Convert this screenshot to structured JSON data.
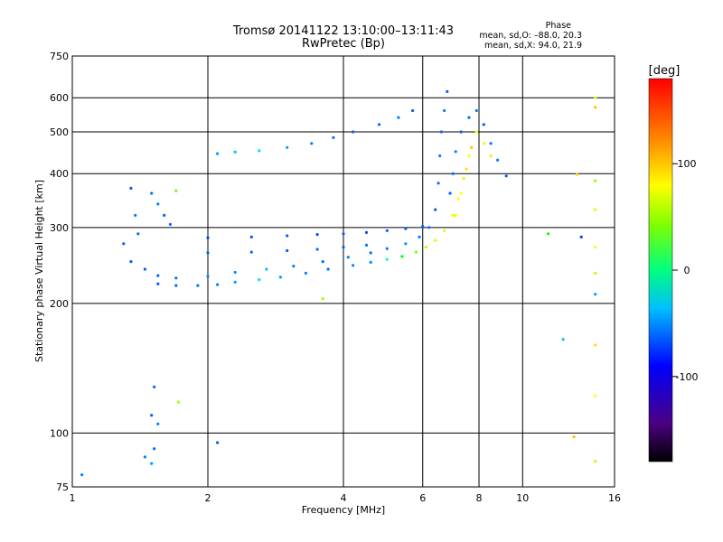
{
  "title": "Tromsø 20141122 13:10:00–13:11:43",
  "subtitle": "RwPretec (Bp)",
  "phase_info": {
    "heading": "Phase",
    "line1": "mean, sd,O: –88.0, 20.3",
    "line2": "mean, sd,X:  94.0, 21.9"
  },
  "chart_data": {
    "type": "scatter",
    "xlabel": "Frequency [MHz]",
    "ylabel": "Stationary phase Virtual Height [km]",
    "xscale": "log",
    "yscale": "log",
    "xlim": [
      1,
      16
    ],
    "ylim": [
      75,
      750
    ],
    "xticks": [
      1,
      2,
      4,
      6,
      8,
      10,
      16
    ],
    "yticks": [
      75,
      100,
      200,
      300,
      400,
      500,
      600,
      750
    ],
    "grid": true,
    "colorbar": {
      "label": "[deg]",
      "range": [
        -180,
        180
      ],
      "ticks": [
        100,
        0,
        -100
      ],
      "colormap": "rainbow"
    },
    "series": [
      {
        "points": [
          [
            1.55,
            222,
            -110
          ],
          [
            1.7,
            220,
            -108
          ],
          [
            1.9,
            220,
            -105
          ],
          [
            2.1,
            221,
            -100
          ],
          [
            2.3,
            224,
            -90
          ],
          [
            2.6,
            227,
            -70
          ],
          [
            2.9,
            230,
            -90
          ],
          [
            3.3,
            235,
            -100
          ],
          [
            3.7,
            240,
            -105
          ],
          [
            4.2,
            245,
            -100
          ],
          [
            4.6,
            249,
            -95
          ],
          [
            5.0,
            253,
            -40
          ],
          [
            5.4,
            257,
            20
          ],
          [
            5.8,
            263,
            60
          ],
          [
            6.1,
            270,
            80
          ],
          [
            6.4,
            280,
            85
          ],
          [
            6.7,
            295,
            90
          ],
          [
            7.0,
            320,
            95
          ],
          [
            7.2,
            350,
            100
          ],
          [
            7.4,
            390,
            105
          ],
          [
            7.6,
            440,
            100
          ]
        ]
      },
      {
        "points": [
          [
            1.35,
            250,
            -110
          ],
          [
            1.45,
            240,
            -110
          ],
          [
            1.55,
            232,
            -108
          ],
          [
            1.7,
            229,
            -105
          ],
          [
            2.0,
            231,
            -100
          ],
          [
            2.3,
            236,
            -95
          ],
          [
            2.7,
            240,
            -80
          ],
          [
            3.1,
            244,
            -100
          ],
          [
            3.6,
            250,
            -105
          ],
          [
            4.1,
            256,
            -100
          ],
          [
            4.6,
            262,
            -105
          ],
          [
            5.0,
            268,
            -100
          ],
          [
            5.5,
            275,
            -95
          ],
          [
            5.9,
            285,
            -100
          ],
          [
            6.2,
            300,
            -105
          ],
          [
            6.4,
            330,
            -110
          ],
          [
            6.5,
            380,
            -105
          ],
          [
            6.55,
            440,
            -100
          ],
          [
            6.6,
            500,
            -105
          ],
          [
            6.7,
            560,
            -100
          ],
          [
            6.8,
            620,
            -110
          ]
        ]
      },
      {
        "points": [
          [
            2.0,
            284,
            -120
          ],
          [
            2.5,
            285,
            -115
          ],
          [
            3.0,
            287,
            -110
          ],
          [
            3.5,
            289,
            -115
          ],
          [
            4.0,
            290,
            -110
          ],
          [
            4.5,
            292,
            -115
          ],
          [
            5.0,
            295,
            -110
          ],
          [
            5.5,
            298,
            -110
          ],
          [
            6.0,
            302,
            -105
          ]
        ]
      },
      {
        "points": [
          [
            2.0,
            262,
            -110
          ],
          [
            2.5,
            263,
            -105
          ],
          [
            3.0,
            265,
            -110
          ],
          [
            3.5,
            267,
            -105
          ],
          [
            4.0,
            270,
            -110
          ],
          [
            4.5,
            273,
            -105
          ]
        ]
      },
      {
        "points": [
          [
            2.1,
            445,
            -90
          ],
          [
            2.3,
            449,
            -80
          ],
          [
            2.6,
            452,
            -70
          ],
          [
            3.0,
            460,
            -90
          ],
          [
            3.4,
            470,
            -100
          ],
          [
            3.8,
            485,
            -105
          ],
          [
            4.2,
            500,
            -110
          ],
          [
            4.8,
            520,
            -105
          ],
          [
            5.3,
            540,
            -100
          ],
          [
            5.7,
            560,
            -110
          ]
        ]
      },
      {
        "points": [
          [
            1.35,
            370,
            -110
          ],
          [
            1.38,
            320,
            -100
          ],
          [
            1.4,
            290,
            -105
          ],
          [
            1.3,
            275,
            -110
          ],
          [
            1.5,
            360,
            -105
          ],
          [
            1.55,
            340,
            -100
          ],
          [
            1.6,
            320,
            -110
          ],
          [
            1.65,
            305,
            -105
          ]
        ]
      },
      {
        "points": [
          [
            6.9,
            360,
            -110
          ],
          [
            7.0,
            400,
            -105
          ],
          [
            7.1,
            450,
            -100
          ],
          [
            7.3,
            500,
            -110
          ],
          [
            7.6,
            540,
            -105
          ],
          [
            7.9,
            560,
            -100
          ],
          [
            8.2,
            520,
            -110
          ],
          [
            8.5,
            470,
            -105
          ],
          [
            8.8,
            430,
            -100
          ],
          [
            9.2,
            395,
            -110
          ]
        ]
      },
      {
        "points": [
          [
            7.1,
            320,
            95
          ],
          [
            7.3,
            360,
            100
          ],
          [
            7.5,
            410,
            110
          ],
          [
            7.7,
            460,
            120
          ],
          [
            7.9,
            500,
            100
          ],
          [
            8.2,
            470,
            90
          ],
          [
            8.5,
            440,
            105
          ]
        ]
      },
      {
        "points": [
          [
            1.5,
            110,
            -110
          ],
          [
            1.55,
            105,
            -100
          ],
          [
            1.45,
            88,
            -100
          ],
          [
            1.5,
            85,
            -90
          ],
          [
            1.52,
            92,
            -105
          ],
          [
            2.1,
            95,
            -110
          ],
          [
            1.05,
            80,
            -100
          ],
          [
            1.52,
            128,
            -110
          ],
          [
            1.72,
            118,
            70
          ],
          [
            1.7,
            365,
            60
          ],
          [
            3.6,
            205,
            70
          ],
          [
            11.4,
            290,
            20
          ],
          [
            13.5,
            285,
            -120
          ],
          [
            12.3,
            165,
            -80
          ],
          [
            14.5,
            600,
            90
          ],
          [
            14.5,
            570,
            120
          ],
          [
            14.5,
            385,
            70
          ],
          [
            14.5,
            330,
            90
          ],
          [
            14.5,
            270,
            100
          ],
          [
            14.5,
            235,
            80
          ],
          [
            14.5,
            210,
            -90
          ],
          [
            14.5,
            160,
            110
          ],
          [
            14.5,
            122,
            100
          ],
          [
            13.0,
            98,
            120
          ],
          [
            14.5,
            86,
            80
          ],
          [
            13.2,
            398,
            110
          ]
        ]
      }
    ]
  }
}
